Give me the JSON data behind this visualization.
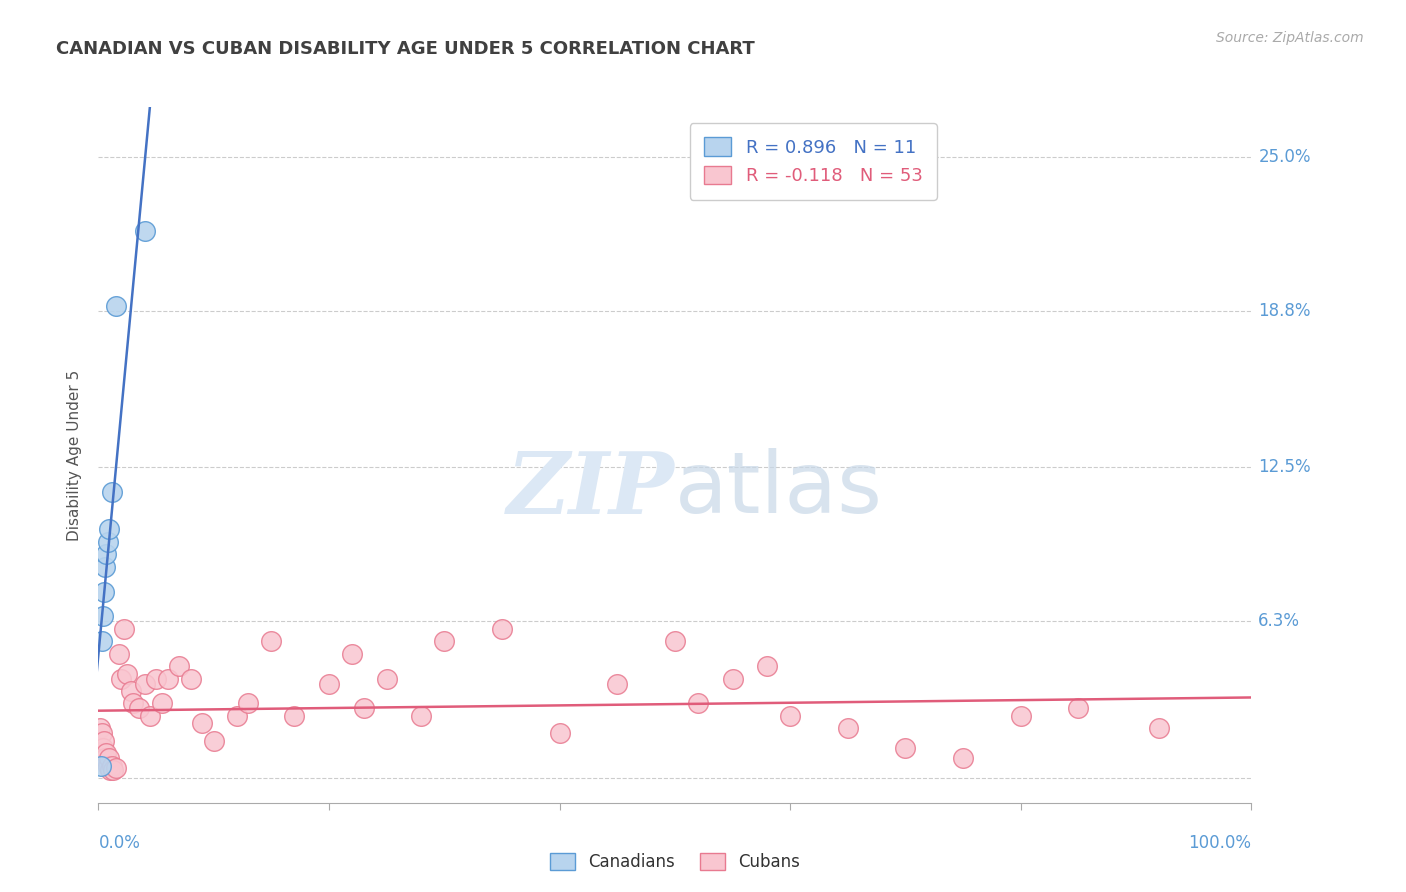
{
  "title": "CANADIAN VS CUBAN DISABILITY AGE UNDER 5 CORRELATION CHART",
  "source": "Source: ZipAtlas.com",
  "ylabel": "Disability Age Under 5",
  "xlim": [
    0.0,
    1.0
  ],
  "ylim": [
    -0.01,
    0.27
  ],
  "ytick_vals": [
    0.0,
    0.063,
    0.125,
    0.188,
    0.25
  ],
  "ytick_labels": [
    "",
    "6.3%",
    "12.5%",
    "18.8%",
    "25.0%"
  ],
  "xtick_vals": [
    0.0,
    0.2,
    0.4,
    0.6,
    0.8,
    1.0
  ],
  "xtick_end_labels": [
    "0.0%",
    "100.0%"
  ],
  "canadian_R": 0.896,
  "canadian_N": 11,
  "cuban_R": -0.118,
  "cuban_N": 53,
  "canadian_color": "#b8d4ee",
  "canadian_edge_color": "#5b9bd5",
  "canadian_line_color": "#4472c4",
  "cuban_color": "#f9c6d0",
  "cuban_edge_color": "#e87a90",
  "cuban_line_color": "#e05c7a",
  "background_color": "#ffffff",
  "grid_color": "#cccccc",
  "title_color": "#404040",
  "axis_label_color": "#555555",
  "tick_color": "#5b9bd5",
  "legend_R_color_canadian": "#4472c4",
  "legend_R_color_cuban": "#e05c7a",
  "watermark_color": "#dce8f5",
  "canadian_x": [
    0.002,
    0.003,
    0.004,
    0.005,
    0.006,
    0.007,
    0.008,
    0.009,
    0.012,
    0.015,
    0.04
  ],
  "canadian_y": [
    0.005,
    0.055,
    0.065,
    0.075,
    0.085,
    0.09,
    0.095,
    0.1,
    0.115,
    0.19,
    0.22
  ],
  "cuban_x": [
    0.001,
    0.002,
    0.003,
    0.004,
    0.005,
    0.006,
    0.007,
    0.008,
    0.009,
    0.01,
    0.012,
    0.013,
    0.015,
    0.018,
    0.02,
    0.022,
    0.025,
    0.028,
    0.03,
    0.035,
    0.04,
    0.045,
    0.05,
    0.055,
    0.06,
    0.07,
    0.08,
    0.09,
    0.1,
    0.12,
    0.13,
    0.15,
    0.17,
    0.2,
    0.22,
    0.23,
    0.25,
    0.28,
    0.3,
    0.35,
    0.4,
    0.45,
    0.5,
    0.52,
    0.55,
    0.58,
    0.6,
    0.65,
    0.7,
    0.75,
    0.8,
    0.85,
    0.92
  ],
  "cuban_y": [
    0.02,
    0.01,
    0.018,
    0.012,
    0.015,
    0.008,
    0.01,
    0.005,
    0.008,
    0.003,
    0.005,
    0.003,
    0.004,
    0.05,
    0.04,
    0.06,
    0.042,
    0.035,
    0.03,
    0.028,
    0.038,
    0.025,
    0.04,
    0.03,
    0.04,
    0.045,
    0.04,
    0.022,
    0.015,
    0.025,
    0.03,
    0.055,
    0.025,
    0.038,
    0.05,
    0.028,
    0.04,
    0.025,
    0.055,
    0.06,
    0.018,
    0.038,
    0.055,
    0.03,
    0.04,
    0.045,
    0.025,
    0.02,
    0.012,
    0.008,
    0.025,
    0.028,
    0.02
  ]
}
